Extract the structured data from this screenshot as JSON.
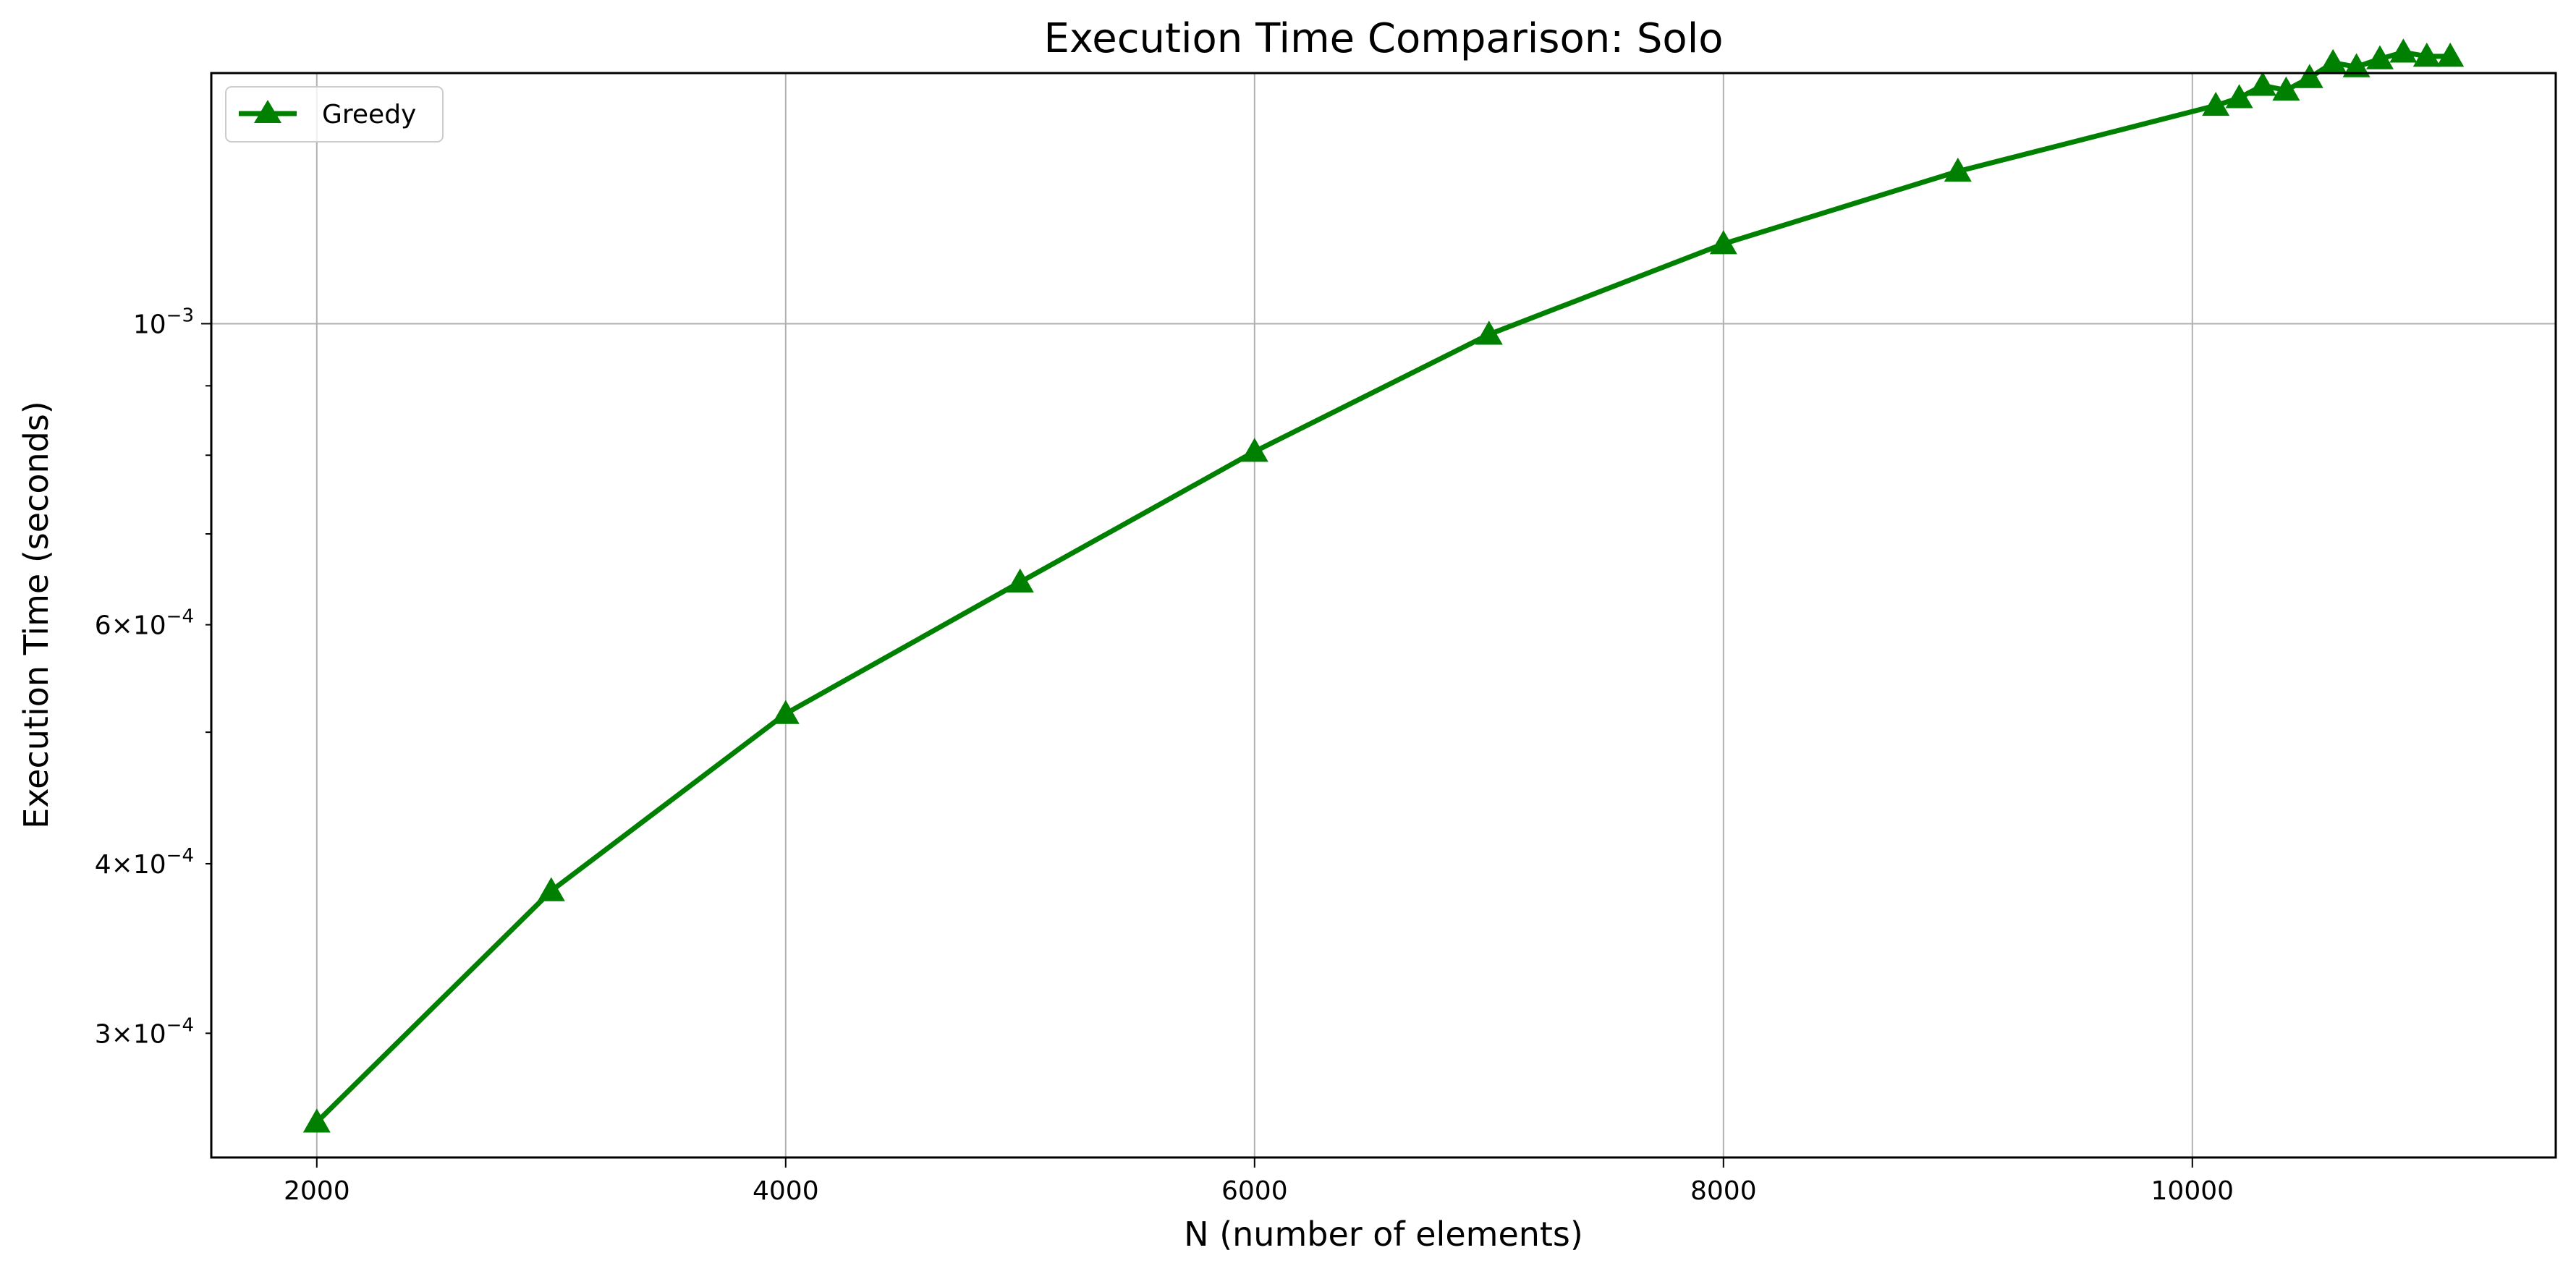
{
  "chart_data": {
    "type": "line",
    "title": "Execution Time Comparison: Solo",
    "xlabel": "N (number of elements)",
    "ylabel": "Execution Time (seconds)",
    "x_scale": "linear",
    "y_scale": "log",
    "xlim": [
      1550,
      11550
    ],
    "ylim": [
      0.000243,
      0.00153
    ],
    "grid": true,
    "legend_position": "top-left",
    "x_ticks": [
      {
        "value": 2000,
        "label": "2000"
      },
      {
        "value": 4000,
        "label": "4000"
      },
      {
        "value": 6000,
        "label": "6000"
      },
      {
        "value": 8000,
        "label": "8000"
      },
      {
        "value": 10000,
        "label": "10000"
      }
    ],
    "y_major_ticks": [
      {
        "value": 0.001,
        "base": "10",
        "exp": "−3"
      }
    ],
    "y_minor_ticks": [
      {
        "value": 0.0003,
        "mantissa": "3",
        "exp": "−4"
      },
      {
        "value": 0.0004,
        "mantissa": "4",
        "exp": "−4"
      },
      {
        "value": 0.0006,
        "mantissa": "6",
        "exp": "−4"
      }
    ],
    "y_unlabeled_minor_ticks": [
      0.0005,
      0.0007,
      0.0008,
      0.0009
    ],
    "series": [
      {
        "name": "Greedy",
        "color": "#008000",
        "marker": "triangle-up",
        "x": [
          2000,
          3000,
          4000,
          5000,
          6000,
          7000,
          8000,
          9000,
          10100,
          10200,
          10300,
          10400,
          10500,
          10600,
          10700,
          10800,
          10900,
          11000,
          11100
        ],
        "y": [
          0.000258,
          0.000382,
          0.000516,
          0.000645,
          0.000805,
          0.000982,
          0.001145,
          0.001295,
          0.001448,
          0.001467,
          0.001498,
          0.001486,
          0.001518,
          0.001557,
          0.001546,
          0.001567,
          0.001585,
          0.001574,
          0.001574
        ]
      }
    ]
  }
}
